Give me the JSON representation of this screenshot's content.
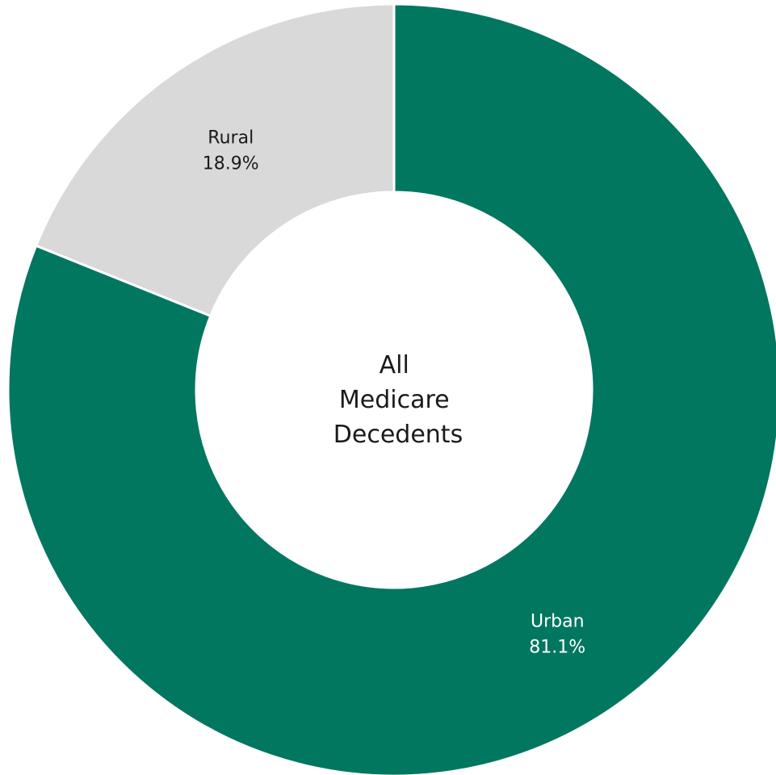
{
  "chart_data": {
    "type": "pie",
    "variant": "donut",
    "center_label_lines": [
      "All",
      "Medicare",
      "Decedents"
    ],
    "slices": [
      {
        "name": "Urban",
        "value": 81.1,
        "display": "81.1%",
        "color": "#017760",
        "label_color": "#ffffff"
      },
      {
        "name": "Rural",
        "value": 18.9,
        "display": "18.9%",
        "color": "#d9d9d9",
        "label_color": "#1a1a1a"
      }
    ],
    "start_angle_deg": 0,
    "direction": "clockwise",
    "legend": "none"
  }
}
